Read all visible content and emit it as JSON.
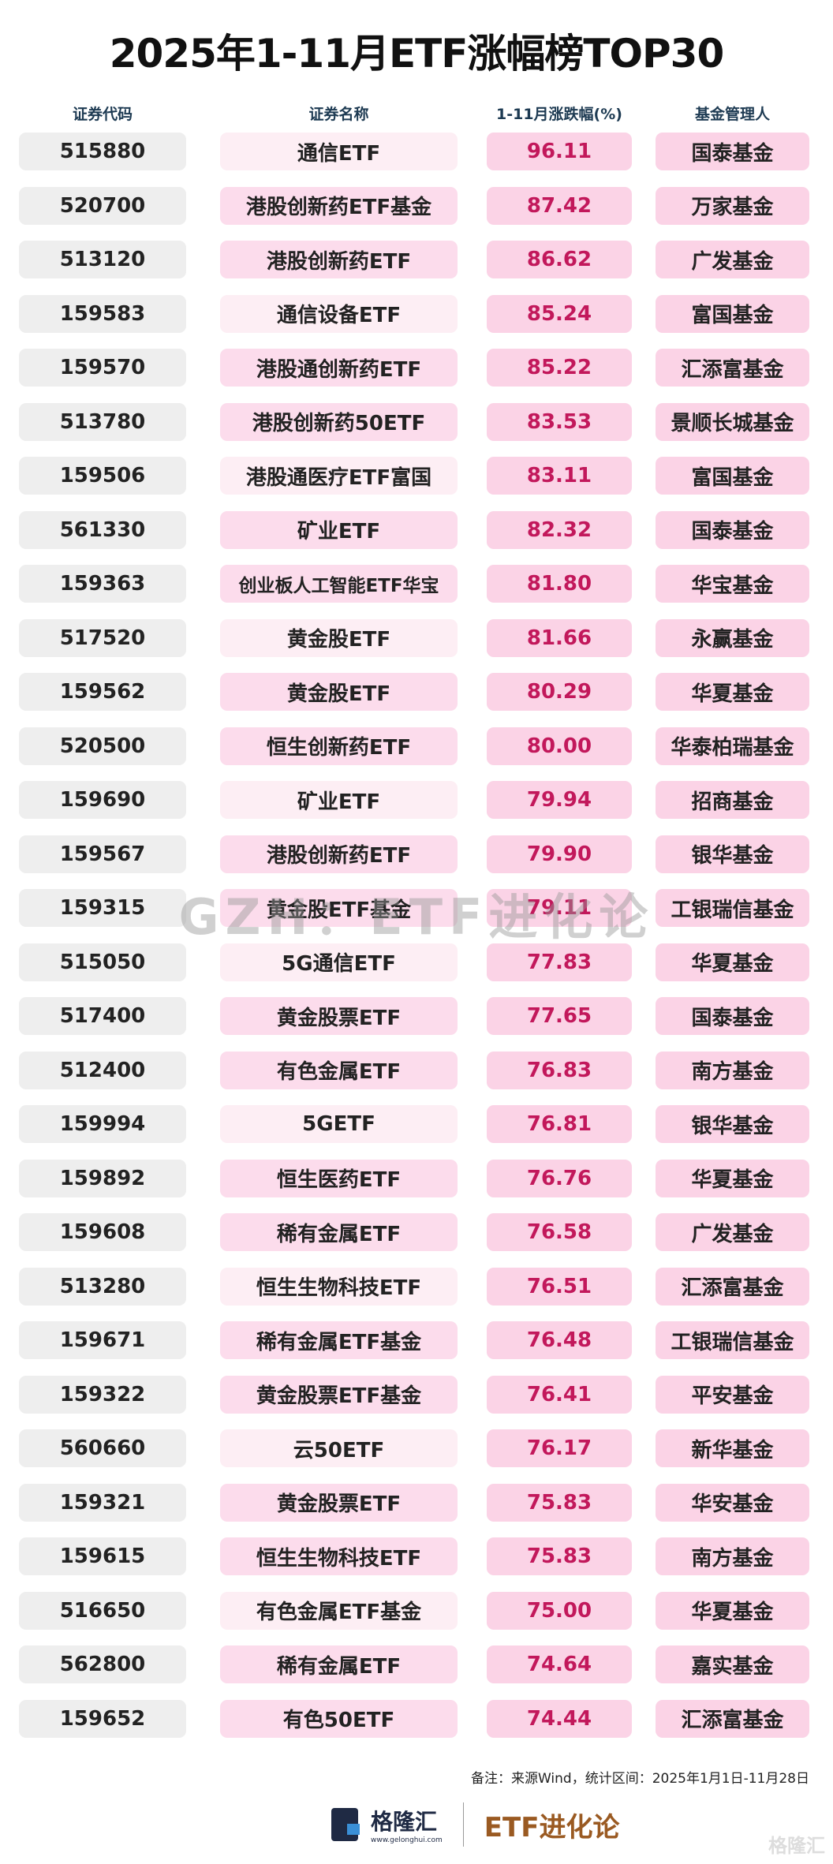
{
  "title": "2025年1-11月ETF涨幅榜TOP30",
  "headers": [
    "证券代码",
    "证券名称",
    "1-11月涨跌幅(%)",
    "基金管理人"
  ],
  "colors": {
    "pct_text": "#c2185b",
    "pink_box": "#fbd3e6",
    "gray_box": "#eeeeee",
    "brand": "#9a5a22"
  },
  "rows": [
    [
      "515880",
      "通信ETF",
      "96.11",
      "国泰基金"
    ],
    [
      "520700",
      "港股创新药ETF基金",
      "87.42",
      "万家基金"
    ],
    [
      "513120",
      "港股创新药ETF",
      "86.62",
      "广发基金"
    ],
    [
      "159583",
      "通信设备ETF",
      "85.24",
      "富国基金"
    ],
    [
      "159570",
      "港股通创新药ETF",
      "85.22",
      "汇添富基金"
    ],
    [
      "513780",
      "港股创新药50ETF",
      "83.53",
      "景顺长城基金"
    ],
    [
      "159506",
      "港股通医疗ETF富国",
      "83.11",
      "富国基金"
    ],
    [
      "561330",
      "矿业ETF",
      "82.32",
      "国泰基金"
    ],
    [
      "159363",
      "创业板人工智能ETF华宝",
      "81.80",
      "华宝基金"
    ],
    [
      "517520",
      "黄金股ETF",
      "81.66",
      "永赢基金"
    ],
    [
      "159562",
      "黄金股ETF",
      "80.29",
      "华夏基金"
    ],
    [
      "520500",
      "恒生创新药ETF",
      "80.00",
      "华泰柏瑞基金"
    ],
    [
      "159690",
      "矿业ETF",
      "79.94",
      "招商基金"
    ],
    [
      "159567",
      "港股创新药ETF",
      "79.90",
      "银华基金"
    ],
    [
      "159315",
      "黄金股ETF基金",
      "79.11",
      "工银瑞信基金"
    ],
    [
      "515050",
      "5G通信ETF",
      "77.83",
      "华夏基金"
    ],
    [
      "517400",
      "黄金股票ETF",
      "77.65",
      "国泰基金"
    ],
    [
      "512400",
      "有色金属ETF",
      "76.83",
      "南方基金"
    ],
    [
      "159994",
      "5GETF",
      "76.81",
      "银华基金"
    ],
    [
      "159892",
      "恒生医药ETF",
      "76.76",
      "华夏基金"
    ],
    [
      "159608",
      "稀有金属ETF",
      "76.58",
      "广发基金"
    ],
    [
      "513280",
      "恒生生物科技ETF",
      "76.51",
      "汇添富基金"
    ],
    [
      "159671",
      "稀有金属ETF基金",
      "76.48",
      "工银瑞信基金"
    ],
    [
      "159322",
      "黄金股票ETF基金",
      "76.41",
      "平安基金"
    ],
    [
      "560660",
      "云50ETF",
      "76.17",
      "新华基金"
    ],
    [
      "159321",
      "黄金股票ETF",
      "75.83",
      "华安基金"
    ],
    [
      "159615",
      "恒生生物科技ETF",
      "75.83",
      "南方基金"
    ],
    [
      "516650",
      "有色金属ETF基金",
      "75.00",
      "华夏基金"
    ],
    [
      "562800",
      "稀有金属ETF",
      "74.64",
      "嘉实基金"
    ],
    [
      "159652",
      "有色50ETF",
      "74.44",
      "汇添富基金"
    ]
  ],
  "watermark": "GZH：ETF进化论",
  "note": "备注：来源Wind，统计区间：2025年1月1日-11月28日",
  "footer": {
    "brand": "格隆汇",
    "url": "www.gelonghui.com",
    "column": "ETF进化论",
    "corner": "格隆汇"
  }
}
